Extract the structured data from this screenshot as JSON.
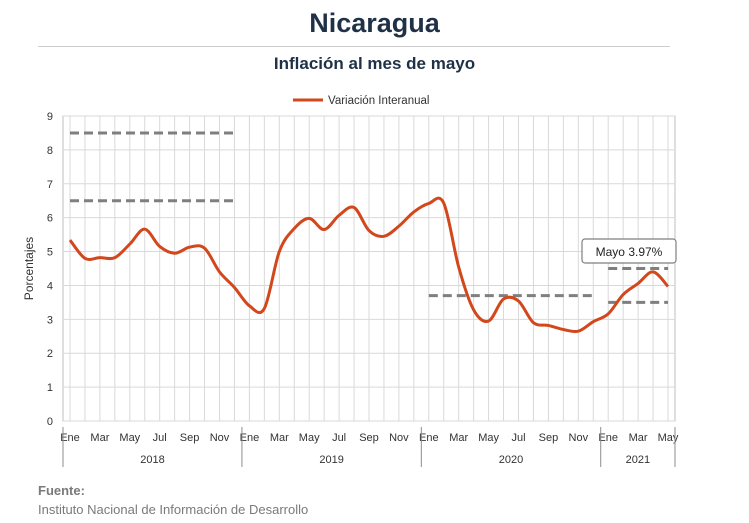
{
  "page": {
    "title": "Nicaragua",
    "subtitle": "Inflación al mes de mayo",
    "source_label": "Fuente:",
    "source_text": "Instituto Nacional de Información de  Desarrollo"
  },
  "colors": {
    "series": "#d2471b",
    "reference": "#7f7f7f",
    "grid": "#d9d9d9"
  },
  "chart_data": {
    "type": "line",
    "ylabel": "Porcentajes",
    "ylim": [
      0,
      9
    ],
    "yticks": [
      "0",
      "1",
      "2",
      "3",
      "4",
      "5",
      "6",
      "7",
      "8",
      "9"
    ],
    "grid": true,
    "legend": "top-center",
    "month_labels": [
      "Ene",
      "Mar",
      "May",
      "Jul",
      "Sep",
      "Nov",
      "Ene",
      "Mar",
      "May",
      "Jul",
      "Sep",
      "Nov",
      "Ene",
      "Mar",
      "May",
      "Jul",
      "Sep",
      "Nov",
      "Ene",
      "Mar",
      "May"
    ],
    "years": [
      {
        "label": "2018",
        "start": 0,
        "end": 11
      },
      {
        "label": "2019",
        "start": 12,
        "end": 23
      },
      {
        "label": "2020",
        "start": 24,
        "end": 35
      },
      {
        "label": "2021",
        "start": 36,
        "end": 40
      }
    ],
    "series": [
      {
        "name": "Variación Interanual",
        "values": [
          5.34,
          4.8,
          4.82,
          4.82,
          5.22,
          5.66,
          5.15,
          4.95,
          5.13,
          5.1,
          4.4,
          3.94,
          3.4,
          3.32,
          5.0,
          5.68,
          5.98,
          5.65,
          6.07,
          6.3,
          5.62,
          5.45,
          5.75,
          6.17,
          6.42,
          6.43,
          4.54,
          3.28,
          2.95,
          3.6,
          3.54,
          2.9,
          2.82,
          2.7,
          2.65,
          2.93,
          3.16,
          3.73,
          4.06,
          4.4,
          3.97
        ]
      }
    ],
    "reference_lines": [
      {
        "y": 8.5,
        "from": 0,
        "to": 11
      },
      {
        "y": 6.5,
        "from": 0,
        "to": 11
      },
      {
        "y": 3.7,
        "from": 24,
        "to": 35
      },
      {
        "y": 4.5,
        "from": 36,
        "to": 40
      },
      {
        "y": 3.5,
        "from": 36,
        "to": 40
      }
    ],
    "annotation": {
      "text": "Mayo 3.97%",
      "index": 40,
      "value": 3.97
    }
  }
}
